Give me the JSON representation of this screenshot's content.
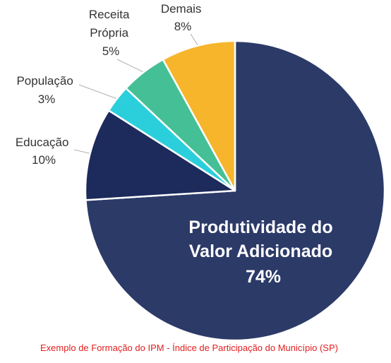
{
  "chart_data": {
    "type": "pie",
    "categories": [
      "Produtividade do Valor Adicionado",
      "Educação",
      "População",
      "Receita Própria",
      "Demais"
    ],
    "values": [
      74,
      10,
      3,
      5,
      8
    ],
    "unit": "%",
    "labels": [
      {
        "lines": [
          "Produtividade do",
          "Valor Adicionado"
        ],
        "value": "74%"
      },
      {
        "lines": [
          "Educação"
        ],
        "value": "10%"
      },
      {
        "lines": [
          "População"
        ],
        "value": "3%"
      },
      {
        "lines": [
          "Receita",
          "Própria"
        ],
        "value": "5%"
      },
      {
        "lines": [
          "Demais"
        ],
        "value": "8%"
      }
    ],
    "colors": [
      "#2c3a68",
      "#1c2a5c",
      "#2bcfdc",
      "#45bf96",
      "#f7b52c"
    ],
    "start": "12 o'clock",
    "direction": "clockwise"
  },
  "caption": "Exemplo de Formação do IPM - Índice de Participação do Município (SP)"
}
